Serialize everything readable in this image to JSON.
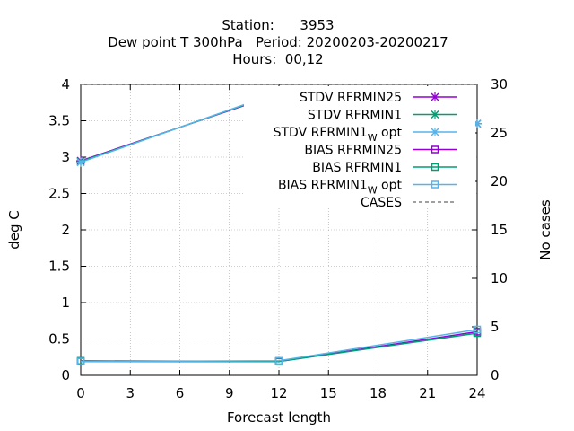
{
  "chart_data": {
    "type": "line",
    "title_lines": [
      "Station:      3953",
      "Dew point T 300hPa   Period: 20200203-20200217",
      "Hours:  00,12"
    ],
    "xlabel": "Forecast length",
    "ylabel": "deg C",
    "y2label": "No cases",
    "x": [
      0,
      12,
      24
    ],
    "xlim": [
      0,
      24
    ],
    "ylim": [
      0,
      4
    ],
    "y2lim": [
      0,
      30
    ],
    "xticks": [
      "0",
      "3",
      "6",
      "9",
      "12",
      "15",
      "18",
      "21",
      "24"
    ],
    "yticks": [
      "0",
      "0.5",
      "1",
      "1.5",
      "2",
      "2.5",
      "3",
      "3.5",
      "4"
    ],
    "y2ticks": [
      "0",
      "5",
      "10",
      "15",
      "20",
      "25",
      "30"
    ],
    "grid": true,
    "legend_position": "top-right",
    "series": [
      {
        "name": "STDV RFRMIN25",
        "sub": "",
        "suffix": "",
        "values": [
          2.95,
          3.87,
          3.46
        ],
        "color": "#9400d3",
        "marker": "x",
        "axis": "y"
      },
      {
        "name": "STDV RFRMIN1",
        "sub": "",
        "suffix": "",
        "values": [
          2.94,
          3.88,
          3.46
        ],
        "color": "#009e73",
        "marker": "x",
        "axis": "y"
      },
      {
        "name": "STDV RFRMIN1",
        "sub": "W",
        "suffix": " opt",
        "values": [
          2.93,
          3.89,
          3.46
        ],
        "color": "#56b4e9",
        "marker": "x",
        "axis": "y"
      },
      {
        "name": "BIAS RFRMIN25",
        "sub": "",
        "suffix": "",
        "values": [
          0.19,
          0.19,
          0.6
        ],
        "color": "#9400d3",
        "marker": "square",
        "axis": "y"
      },
      {
        "name": "BIAS RFRMIN1",
        "sub": "",
        "suffix": "",
        "values": [
          0.2,
          0.19,
          0.58
        ],
        "color": "#009e73",
        "marker": "square",
        "axis": "y"
      },
      {
        "name": "BIAS RFRMIN1",
        "sub": "W",
        "suffix": " opt",
        "values": [
          0.19,
          0.2,
          0.63
        ],
        "color": "#56b4e9",
        "marker": "square",
        "axis": "y"
      },
      {
        "name": "CASES",
        "sub": "",
        "suffix": "",
        "values": [
          30,
          30,
          30
        ],
        "color": "#808080",
        "marker": "none",
        "dashed": true,
        "axis": "y2"
      }
    ]
  }
}
